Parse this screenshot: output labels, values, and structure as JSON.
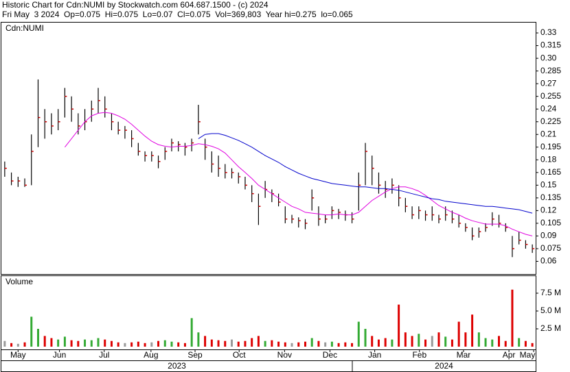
{
  "chart_data": {
    "type": "ohlc",
    "title": "Historic Chart for Cdn:NUMI by Stockwatch.com 604.687.1500 - (c) 2024",
    "subtitle": "Fri May  3 2024  Op=0.075  Hi=0.075  Lo=0.07  Cl=0.075  Vol=369,803  Year hi=0.275  lo=0.065",
    "symbol_label": "Cdn:NUMI",
    "volume_label": "Volume",
    "xlim": [
      0,
      80
    ],
    "xticks": [
      {
        "value": 2.5,
        "label": "May"
      },
      {
        "value": 8.7,
        "label": "Jun"
      },
      {
        "value": 15.4,
        "label": "Jul"
      },
      {
        "value": 22.4,
        "label": "Aug"
      },
      {
        "value": 29,
        "label": "Sep"
      },
      {
        "value": 35.6,
        "label": "Oct"
      },
      {
        "value": 42.4,
        "label": "Nov"
      },
      {
        "value": 49.2,
        "label": "Dec"
      },
      {
        "value": 55.9,
        "label": "Jan"
      },
      {
        "value": 62.6,
        "label": "Feb"
      },
      {
        "value": 69.2,
        "label": "Mar"
      },
      {
        "value": 76,
        "label": "Apr"
      },
      {
        "value": 79.7,
        "label": "May"
      }
    ],
    "year_labels": [
      "2023",
      "2024"
    ],
    "ylim": [
      0.045,
      0.343
    ],
    "yticks": [
      0.06,
      0.075,
      0.09,
      0.105,
      0.12,
      0.135,
      0.15,
      0.165,
      0.18,
      0.195,
      0.21,
      0.225,
      0.24,
      0.255,
      0.27,
      0.285,
      {
        "value": 0.3,
        "label": "0.30"
      },
      0.315,
      0.33
    ],
    "bar_color": "#000000",
    "close_color": "#cc0000",
    "high": [
      0.178,
      0.165,
      0.16,
      0.158,
      0.21,
      0.275,
      0.24,
      0.235,
      0.24,
      0.265,
      0.255,
      0.235,
      0.24,
      0.25,
      0.265,
      0.255,
      0.235,
      0.225,
      0.22,
      0.215,
      0.2,
      0.19,
      0.19,
      0.185,
      0.195,
      0.205,
      0.202,
      0.2,
      0.205,
      0.245,
      0.205,
      0.19,
      0.185,
      0.175,
      0.17,
      0.165,
      0.16,
      0.15,
      0.14,
      0.155,
      0.145,
      0.14,
      0.125,
      0.115,
      0.112,
      0.11,
      0.145,
      0.125,
      0.115,
      0.125,
      0.122,
      0.12,
      0.118,
      0.165,
      0.2,
      0.185,
      0.165,
      0.155,
      0.158,
      0.15,
      0.135,
      0.125,
      0.125,
      0.12,
      0.125,
      0.115,
      0.125,
      0.12,
      0.115,
      0.105,
      0.1,
      0.1,
      0.105,
      0.118,
      0.115,
      0.105,
      0.09,
      0.095,
      0.085,
      0.08
    ],
    "low": [
      0.16,
      0.15,
      0.148,
      0.148,
      0.15,
      0.195,
      0.205,
      0.21,
      0.215,
      0.23,
      0.225,
      0.21,
      0.215,
      0.225,
      0.235,
      0.23,
      0.215,
      0.21,
      0.205,
      0.195,
      0.185,
      0.178,
      0.178,
      0.17,
      0.18,
      0.19,
      0.19,
      0.185,
      0.19,
      0.21,
      0.18,
      0.165,
      0.16,
      0.158,
      0.158,
      0.152,
      0.145,
      0.13,
      0.103,
      0.135,
      0.13,
      0.125,
      0.105,
      0.105,
      0.1,
      0.098,
      0.12,
      0.102,
      0.105,
      0.11,
      0.11,
      0.108,
      0.105,
      0.12,
      0.15,
      0.15,
      0.14,
      0.135,
      0.14,
      0.125,
      0.118,
      0.11,
      0.11,
      0.108,
      0.108,
      0.105,
      0.108,
      0.105,
      0.1,
      0.095,
      0.085,
      0.088,
      0.095,
      0.102,
      0.1,
      0.095,
      0.065,
      0.08,
      0.075,
      0.07
    ],
    "close": [
      0.17,
      0.155,
      0.155,
      0.15,
      0.19,
      0.23,
      0.225,
      0.22,
      0.225,
      0.255,
      0.24,
      0.22,
      0.225,
      0.24,
      0.25,
      0.24,
      0.225,
      0.215,
      0.215,
      0.205,
      0.19,
      0.185,
      0.185,
      0.178,
      0.19,
      0.2,
      0.198,
      0.195,
      0.2,
      0.225,
      0.195,
      0.175,
      0.17,
      0.165,
      0.165,
      0.16,
      0.15,
      0.14,
      0.125,
      0.145,
      0.14,
      0.13,
      0.11,
      0.11,
      0.108,
      0.105,
      0.135,
      0.11,
      0.11,
      0.12,
      0.118,
      0.115,
      0.11,
      0.15,
      0.19,
      0.17,
      0.15,
      0.145,
      0.15,
      0.135,
      0.125,
      0.115,
      0.12,
      0.115,
      0.115,
      0.11,
      0.115,
      0.11,
      0.105,
      0.1,
      0.09,
      0.095,
      0.1,
      0.11,
      0.105,
      0.1,
      0.075,
      0.085,
      0.08,
      0.075
    ],
    "series": [
      {
        "color": "#e000e0",
        "values": [
          null,
          null,
          null,
          null,
          null,
          null,
          null,
          null,
          null,
          0.195,
          0.205,
          0.215,
          0.225,
          0.232,
          0.235,
          0.236,
          0.235,
          0.232,
          0.228,
          0.222,
          0.215,
          0.208,
          0.202,
          0.198,
          0.196,
          0.195,
          0.196,
          0.196,
          0.197,
          0.199,
          0.198,
          0.196,
          0.193,
          0.188,
          0.18,
          0.172,
          0.165,
          0.158,
          0.15,
          0.145,
          0.14,
          0.135,
          0.13,
          0.125,
          0.122,
          0.118,
          0.117,
          0.116,
          0.115,
          0.115,
          0.116,
          0.115,
          0.115,
          0.118,
          0.125,
          0.132,
          0.137,
          0.142,
          0.146,
          0.148,
          0.148,
          0.146,
          0.143,
          0.138,
          0.132,
          0.126,
          0.122,
          0.118,
          0.115,
          0.111,
          0.108,
          0.106,
          0.104,
          0.104,
          0.104,
          0.102,
          0.098,
          0.095,
          0.092,
          0.09
        ]
      },
      {
        "color": "#0000cc",
        "values": [
          null,
          null,
          null,
          null,
          null,
          null,
          null,
          null,
          null,
          null,
          null,
          null,
          null,
          null,
          null,
          null,
          null,
          null,
          null,
          null,
          null,
          null,
          null,
          null,
          null,
          null,
          null,
          null,
          null,
          0.205,
          0.21,
          0.211,
          0.211,
          0.209,
          0.206,
          0.203,
          0.199,
          0.195,
          0.19,
          0.185,
          0.181,
          0.177,
          0.172,
          0.168,
          0.164,
          0.161,
          0.158,
          0.156,
          0.154,
          0.152,
          0.151,
          0.15,
          0.149,
          0.148,
          0.148,
          0.147,
          0.146,
          0.146,
          0.145,
          0.144,
          0.142,
          0.14,
          0.138,
          0.136,
          0.134,
          0.133,
          0.131,
          0.13,
          0.129,
          0.128,
          0.127,
          0.126,
          0.125,
          0.125,
          0.124,
          0.123,
          0.122,
          0.121,
          0.119,
          0.117
        ]
      }
    ],
    "volume": [
      0.8,
      0.5,
      0.4,
      0.6,
      4.2,
      2.5,
      1.5,
      1.2,
      1.0,
      1.4,
      0.9,
      0.8,
      1.0,
      0.9,
      1.2,
      1.0,
      0.8,
      0.6,
      0.5,
      0.6,
      0.7,
      0.5,
      0.6,
      0.8,
      0.9,
      0.7,
      0.6,
      0.5,
      4.0,
      2.0,
      1.5,
      1.0,
      0.9,
      0.8,
      1.0,
      0.7,
      0.8,
      1.2,
      1.5,
      0.8,
      0.9,
      0.7,
      0.6,
      0.5,
      0.6,
      0.7,
      1.2,
      0.8,
      0.6,
      0.7,
      0.5,
      0.6,
      0.5,
      3.5,
      2.5,
      1.5,
      1.0,
      1.2,
      1.0,
      5.9,
      2.0,
      1.5,
      1.8,
      1.0,
      1.5,
      2.0,
      1.4,
      1.0,
      3.5,
      2.0,
      4.5,
      2.0,
      1.2,
      1.0,
      1.5,
      0.8,
      8.0,
      1.2,
      0.8,
      0.5
    ],
    "volume_ylim": [
      0,
      9.9
    ],
    "volume_yticks": [
      {
        "value": 2.5,
        "label": "2.5 M"
      },
      {
        "value": 5,
        "label": "5.0 M"
      },
      {
        "value": 7.5,
        "label": "7.5 M"
      }
    ],
    "volume_colors": {
      "up": "#33aa33",
      "down": "#dd0000",
      "flat": "#999999"
    }
  }
}
